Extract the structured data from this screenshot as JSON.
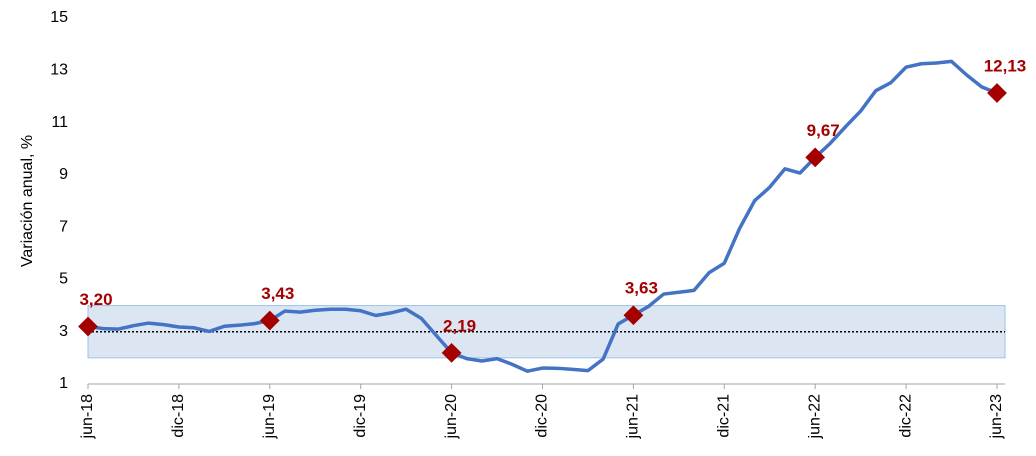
{
  "chart_data": {
    "type": "line",
    "y_label": "Variación anual, %",
    "categories": [
      "jun-18",
      null,
      null,
      null,
      null,
      null,
      "dic-18",
      null,
      null,
      null,
      null,
      null,
      "jun-19",
      null,
      null,
      null,
      null,
      null,
      "dic-19",
      null,
      null,
      null,
      null,
      null,
      "jun-20",
      null,
      null,
      null,
      null,
      null,
      "dic-20",
      null,
      null,
      null,
      null,
      null,
      "jun-21",
      null,
      null,
      null,
      null,
      null,
      "dic-21",
      null,
      null,
      null,
      null,
      null,
      "jun-22",
      null,
      null,
      null,
      null,
      null,
      "dic-22",
      null,
      null,
      null,
      null,
      null,
      "jun-23"
    ],
    "series": [
      {
        "name": null,
        "color": "#4472c4",
        "values": [
          3.2,
          3.12,
          3.1,
          3.23,
          3.33,
          3.27,
          3.18,
          3.15,
          3.01,
          3.21,
          3.25,
          3.31,
          3.43,
          3.79,
          3.75,
          3.82,
          3.86,
          3.86,
          3.8,
          3.62,
          3.72,
          3.86,
          3.51,
          2.85,
          2.19,
          1.97,
          1.88,
          1.97,
          1.75,
          1.49,
          1.61,
          1.6,
          1.56,
          1.51,
          1.95,
          3.3,
          3.63,
          3.97,
          4.44,
          4.51,
          4.58,
          5.26,
          5.62,
          6.94,
          8.01,
          8.53,
          9.23,
          9.07,
          9.67,
          10.21,
          10.84,
          11.44,
          12.22,
          12.53,
          13.12,
          13.25,
          13.28,
          13.34,
          12.82,
          12.36,
          12.13
        ],
        "value_labels": [
          "3,20",
          null,
          null,
          null,
          null,
          null,
          null,
          null,
          null,
          null,
          null,
          null,
          "3,43",
          null,
          null,
          null,
          null,
          null,
          null,
          null,
          null,
          null,
          null,
          null,
          "2,19",
          null,
          null,
          null,
          null,
          null,
          null,
          null,
          null,
          null,
          null,
          null,
          "3,63",
          null,
          null,
          null,
          null,
          null,
          null,
          null,
          null,
          null,
          null,
          null,
          "9,67",
          null,
          null,
          null,
          null,
          null,
          null,
          null,
          null,
          null,
          null,
          null,
          "12,13"
        ],
        "marker_color": "#a50000"
      }
    ],
    "ylim": [
      1,
      15
    ],
    "yticks": [
      1,
      3,
      5,
      7,
      9,
      11,
      13,
      15
    ],
    "target_band": [
      2,
      4
    ],
    "band_color": "#dce6f2",
    "reference_line": 3
  }
}
